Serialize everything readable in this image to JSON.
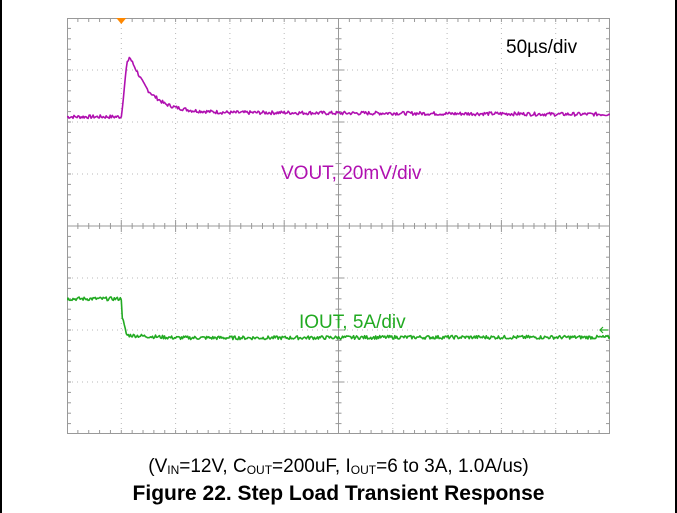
{
  "chart_data": {
    "type": "line",
    "title": "Figure 22. Step Load Transient Response",
    "subtitle_parts": {
      "open": "(V",
      "vin_sub": "IN",
      "vin_val": "=12V, C",
      "cout_sub": "OUT",
      "cout_val": "=200uF, I",
      "iout_sub": "OUT",
      "iout_val": "=6 to 3A, 1.0A/us)"
    },
    "timebase": "50µs/div",
    "grid": true,
    "divisions": {
      "x": 10,
      "y": 8
    },
    "series": [
      {
        "name": "VOUT, 20mV/div",
        "color": "#b010b0",
        "x_div": [
          0,
          1.0,
          1.05,
          1.1,
          1.15,
          1.2,
          1.3,
          1.4,
          1.5,
          1.6,
          1.8,
          2.0,
          2.3,
          2.6,
          3.0,
          4.0,
          5.0,
          6.0,
          7.0,
          8.0,
          9.0,
          10.0
        ],
        "y_div": [
          6.1,
          6.1,
          6.6,
          7.1,
          7.25,
          7.15,
          6.95,
          6.75,
          6.6,
          6.5,
          6.35,
          6.28,
          6.22,
          6.2,
          6.18,
          6.18,
          6.17,
          6.17,
          6.16,
          6.16,
          6.15,
          6.15
        ]
      },
      {
        "name": "IOUT, 5A/div",
        "color": "#22aa22",
        "x_div": [
          0,
          1.0,
          1.0,
          1.05,
          1.1,
          2.0,
          4.0,
          6.0,
          8.0,
          10.0
        ],
        "y_div": [
          2.6,
          2.6,
          2.35,
          2.1,
          1.9,
          1.85,
          1.85,
          1.86,
          1.86,
          1.86
        ]
      }
    ],
    "trigger_x_div": 1.0,
    "marker_y_div": 2.0,
    "colors": {
      "grid": "#b8b8b8",
      "axis": "#999999",
      "trigger": "#ff8800",
      "marker": "#22aa22"
    }
  }
}
